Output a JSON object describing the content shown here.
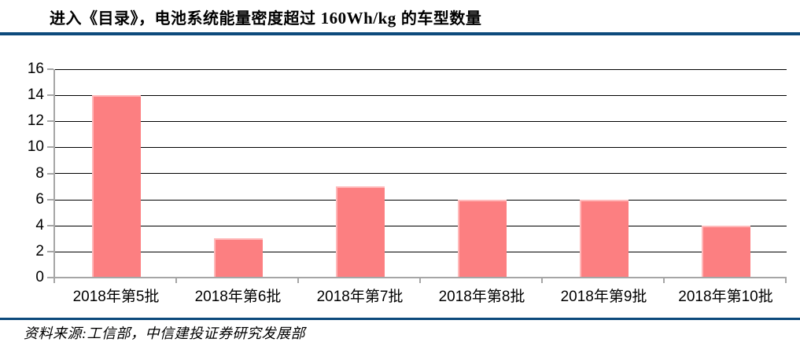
{
  "title": {
    "full": "进入《目录》，电池系统能量密度超过 160Wh/kg 的车型数量",
    "prefix": "进入《目录》，电池系统能量密度超过 ",
    "latin": "160Wh/kg",
    "suffix": " 的车型数量"
  },
  "footer": {
    "source": "资料来源:工信部，中信建投证券研究发展部"
  },
  "colors": {
    "bar": "#FC7F81",
    "bar_edge": "#FFB9BA",
    "rule": "#0D4A7C",
    "axis": "#A6A6A6",
    "grid": "#000000",
    "text": "#000000"
  },
  "chart_data": {
    "type": "bar",
    "title": "进入《目录》，电池系统能量密度超过 160Wh/kg 的车型数量",
    "categories": [
      "2018年第5批",
      "2018年第6批",
      "2018年第7批",
      "2018年第8批",
      "2018年第9批",
      "2018年第10批"
    ],
    "values": [
      14,
      3,
      7,
      6,
      6,
      4
    ],
    "xlabel": "",
    "ylabel": "",
    "ylim": [
      0,
      16
    ],
    "yticks": [
      0,
      2,
      4,
      6,
      8,
      10,
      12,
      14,
      16
    ],
    "grid": true,
    "legend": false,
    "bar_color": "#FC7F81"
  }
}
